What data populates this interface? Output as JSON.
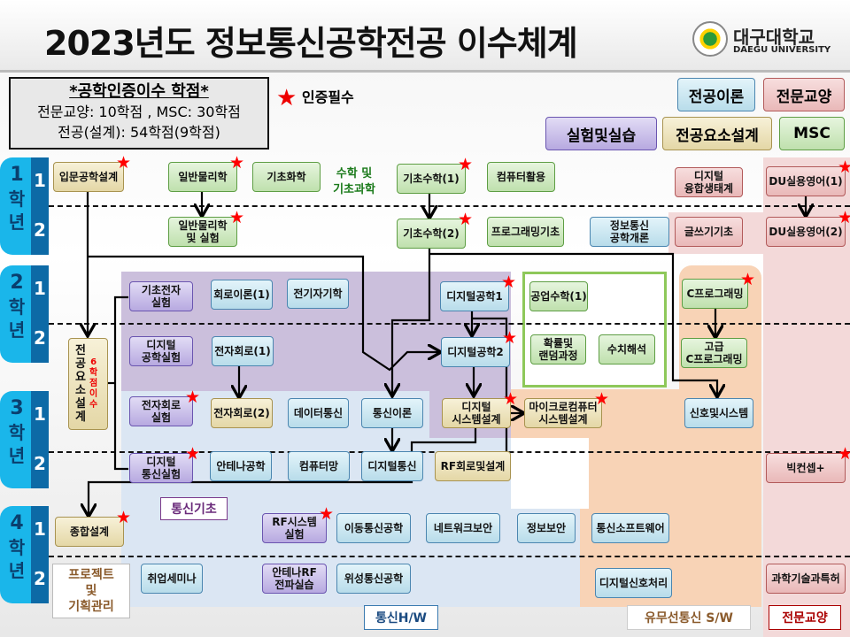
{
  "title": "2023년도 정보통신공학전공 이수체계",
  "logo": {
    "name_ko": "대구대학교",
    "name_en": "DAEGU UNIVERSITY"
  },
  "credits": {
    "heading": "*공학인증이수 학점*",
    "line1": "전문교양: 10학점 , MSC: 30학점",
    "line2": "전공(설계): 54학점(9학점)"
  },
  "required_legend": {
    "icon": "star-icon",
    "label": "인증필수"
  },
  "legend": [
    {
      "label": "전공이론",
      "category": "theory"
    },
    {
      "label": "전문교양",
      "category": "liberal"
    },
    {
      "label": "실험및실습",
      "category": "lab"
    },
    {
      "label": "전공요소설계",
      "category": "design"
    },
    {
      "label": "MSC",
      "category": "msc"
    }
  ],
  "colors": {
    "theory": "#c9e6f0",
    "lab": "#c8bde8",
    "design": "#efe6c0",
    "msc": "#cfe8c0",
    "liberal": "#f0c8c8",
    "required_star": "#ff0000",
    "year_tab": "#1ab6ea"
  },
  "years": [
    {
      "year": "1",
      "word": "학년",
      "semesters": [
        "1",
        "2"
      ]
    },
    {
      "year": "2",
      "word": "학년",
      "semesters": [
        "1",
        "2"
      ]
    },
    {
      "year": "3",
      "word": "학년",
      "semesters": [
        "1",
        "2"
      ]
    },
    {
      "year": "4",
      "word": "학년",
      "semesters": [
        "1",
        "2"
      ]
    }
  ],
  "groups": {
    "math_science": "수학 및\n기초과학",
    "comm_basics": "통신기초",
    "comm_hw": "통신H/W",
    "comm_sw": "유무선통신 S/W",
    "liberal": "전문교양",
    "project": "프로젝트\n및\n기획관리",
    "design_elements": "전\n공\n요\n소\n설\n계",
    "design_credits": "6\n학\n점\n이\n수"
  },
  "courses": [
    {
      "label": "입문공학설계",
      "category": "design",
      "required": true,
      "term": "1-1"
    },
    {
      "label": "일반물리학",
      "category": "msc",
      "required": true,
      "term": "1-1"
    },
    {
      "label": "기초화학",
      "category": "msc",
      "required": false,
      "term": "1-1"
    },
    {
      "label": "기초수학(1)",
      "category": "msc",
      "required": true,
      "term": "1-1"
    },
    {
      "label": "컴퓨터활용",
      "category": "msc",
      "required": false,
      "term": "1-1"
    },
    {
      "label": "디지털\n융합생태계",
      "category": "liberal",
      "required": false,
      "term": "1-1"
    },
    {
      "label": "DU실용영어(1)",
      "category": "liberal",
      "required": true,
      "term": "1-1"
    },
    {
      "label": "일반물리학\n및 실험",
      "category": "msc",
      "required": true,
      "term": "1-2"
    },
    {
      "label": "기초수학(2)",
      "category": "msc",
      "required": true,
      "term": "1-2"
    },
    {
      "label": "프로그래밍기초",
      "category": "msc",
      "required": false,
      "term": "1-2"
    },
    {
      "label": "정보통신\n공학개론",
      "category": "theory",
      "required": false,
      "term": "1-2"
    },
    {
      "label": "글쓰기기초",
      "category": "liberal",
      "required": false,
      "term": "1-2"
    },
    {
      "label": "DU실용영어(2)",
      "category": "liberal",
      "required": true,
      "term": "1-2"
    },
    {
      "label": "기초전자\n실험",
      "category": "lab",
      "required": false,
      "term": "2-1"
    },
    {
      "label": "회로이론(1)",
      "category": "theory",
      "required": false,
      "term": "2-1"
    },
    {
      "label": "전기자기학",
      "category": "theory",
      "required": false,
      "term": "2-1"
    },
    {
      "label": "디지털공학1",
      "category": "theory",
      "required": true,
      "term": "2-1"
    },
    {
      "label": "공업수학(1)",
      "category": "msc",
      "required": false,
      "term": "2-1"
    },
    {
      "label": "C프로그래밍",
      "category": "msc",
      "required": true,
      "term": "2-1"
    },
    {
      "label": "디지털\n공학실험",
      "category": "lab",
      "required": false,
      "term": "2-2"
    },
    {
      "label": "전자회로(1)",
      "category": "theory",
      "required": false,
      "term": "2-2"
    },
    {
      "label": "디지털공학2",
      "category": "theory",
      "required": true,
      "term": "2-2"
    },
    {
      "label": "확률및\n랜덤과정",
      "category": "msc",
      "required": false,
      "term": "2-2"
    },
    {
      "label": "수치해석",
      "category": "msc",
      "required": false,
      "term": "2-2"
    },
    {
      "label": "고급\nC프로그래밍",
      "category": "msc",
      "required": false,
      "term": "2-2"
    },
    {
      "label": "전자회로\n실험",
      "category": "lab",
      "required": true,
      "term": "3-1"
    },
    {
      "label": "전자회로(2)",
      "category": "design",
      "required": false,
      "term": "3-1"
    },
    {
      "label": "데이터통신",
      "category": "theory",
      "required": false,
      "term": "3-1"
    },
    {
      "label": "통신이론",
      "category": "theory",
      "required": false,
      "term": "3-1"
    },
    {
      "label": "디지털\n시스템설계",
      "category": "design",
      "required": true,
      "term": "3-1"
    },
    {
      "label": "마이크로컴퓨터\n시스템설계",
      "category": "design",
      "required": true,
      "term": "3-1"
    },
    {
      "label": "신호및시스템",
      "category": "theory",
      "required": false,
      "term": "3-1"
    },
    {
      "label": "디지털\n통신실험",
      "category": "lab",
      "required": true,
      "term": "3-2"
    },
    {
      "label": "안테나공학",
      "category": "theory",
      "required": false,
      "term": "3-2"
    },
    {
      "label": "컴퓨터망",
      "category": "theory",
      "required": false,
      "term": "3-2"
    },
    {
      "label": "디지털통신",
      "category": "theory",
      "required": false,
      "term": "3-2"
    },
    {
      "label": "RF회로및설계",
      "category": "design",
      "required": false,
      "term": "3-2"
    },
    {
      "label": "빅컨셉+",
      "category": "liberal",
      "required": true,
      "term": "3-2"
    },
    {
      "label": "종합설계",
      "category": "design",
      "required": true,
      "term": "4-1"
    },
    {
      "label": "RF시스템\n실험",
      "category": "lab",
      "required": true,
      "term": "4-1"
    },
    {
      "label": "이동통신공학",
      "category": "theory",
      "required": false,
      "term": "4-1"
    },
    {
      "label": "네트워크보안",
      "category": "theory",
      "required": false,
      "term": "4-1"
    },
    {
      "label": "정보보안",
      "category": "theory",
      "required": false,
      "term": "4-1"
    },
    {
      "label": "통신소프트웨어",
      "category": "theory",
      "required": false,
      "term": "4-1"
    },
    {
      "label": "취업세미나",
      "category": "theory",
      "required": false,
      "term": "4-2"
    },
    {
      "label": "안테나RF\n전파실습",
      "category": "lab",
      "required": false,
      "term": "4-2"
    },
    {
      "label": "위성통신공학",
      "category": "theory",
      "required": false,
      "term": "4-2"
    },
    {
      "label": "디지털신호처리",
      "category": "theory",
      "required": false,
      "term": "4-2"
    },
    {
      "label": "과학기술과특허",
      "category": "liberal",
      "required": false,
      "term": "4-2"
    }
  ]
}
